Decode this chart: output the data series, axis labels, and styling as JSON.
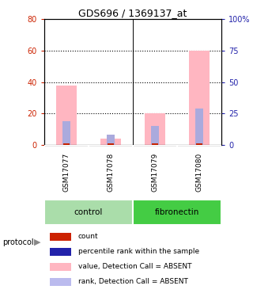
{
  "title": "GDS696 / 1369137_at",
  "samples": [
    "GSM17077",
    "GSM17078",
    "GSM17079",
    "GSM17080"
  ],
  "pink_bars": [
    38,
    4,
    20,
    60
  ],
  "blue_bars": [
    19,
    8,
    15,
    29
  ],
  "red_base": [
    1.0,
    1.0,
    1.0,
    1.0
  ],
  "ylim_left": [
    0,
    80
  ],
  "ylim_right": [
    0,
    100
  ],
  "yticks_left": [
    0,
    20,
    40,
    60,
    80
  ],
  "yticks_right": [
    0,
    25,
    50,
    75,
    100
  ],
  "ytick_labels_right": [
    "0",
    "25",
    "50",
    "75",
    "100%"
  ],
  "bar_width": 0.45,
  "blue_bar_width": 0.18,
  "pink_color": "#FFB6C1",
  "blue_color": "#AAAADD",
  "red_color": "#CC2200",
  "dark_blue_color": "#2222AA",
  "bg_color": "#ffffff",
  "left_tick_color": "#CC2200",
  "right_tick_color": "#2222AA",
  "grid_color": "#000000",
  "sample_bg": "#CCCCCC",
  "control_color": "#AADDAA",
  "fibronectin_color": "#44CC44",
  "protocol_label": "protocol",
  "title_fontsize": 9,
  "axis_label_fontsize": 7,
  "sample_fontsize": 6.5,
  "group_fontsize": 7.5,
  "legend_fontsize": 6.5,
  "legend_items": [
    {
      "color": "#CC2200",
      "label": "count"
    },
    {
      "color": "#2222AA",
      "label": "percentile rank within the sample"
    },
    {
      "color": "#FFB6C1",
      "label": "value, Detection Call = ABSENT"
    },
    {
      "color": "#BBBBEE",
      "label": "rank, Detection Call = ABSENT"
    }
  ]
}
